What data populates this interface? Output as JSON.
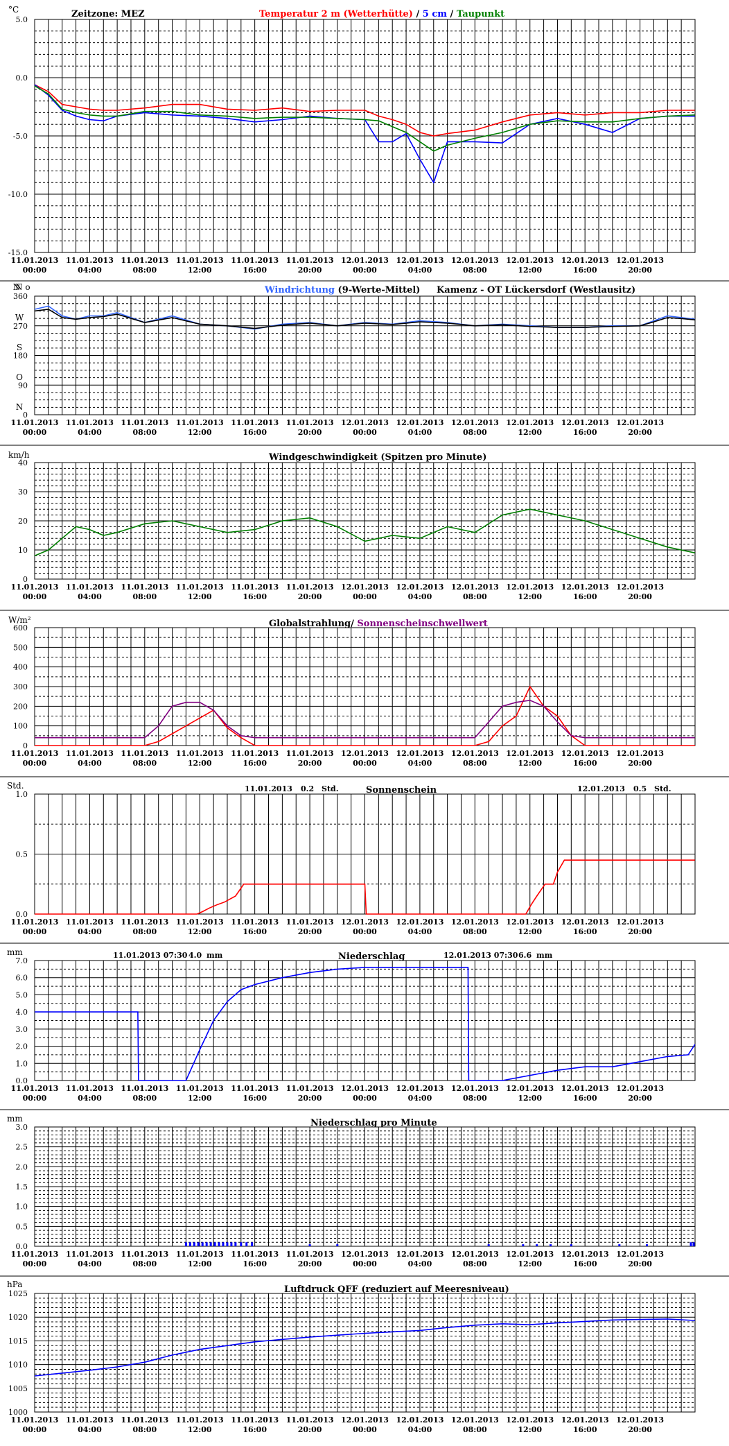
{
  "time_ticks": {
    "dates": [
      "11.01.2013",
      "11.01.2013",
      "11.01.2013",
      "11.01.2013",
      "11.01.2013",
      "11.01.2013",
      "12.01.2013",
      "12.01.2013",
      "12.01.2013",
      "12.01.2013",
      "12.01.2013",
      "12.01.2013"
    ],
    "times": [
      "00:00",
      "04:00",
      "08:00",
      "12:00",
      "16:00",
      "20:00",
      "00:00",
      "04:00",
      "08:00",
      "12:00",
      "16:00",
      "20:00"
    ]
  },
  "colors": {
    "red": "#ff0000",
    "blue": "#0000ff",
    "lightblue": "#3366ff",
    "green": "#008000",
    "purple": "#800080",
    "black": "#000000"
  },
  "panels": {
    "temperature": {
      "unit": "°C",
      "timezone": "Zeitzone: MEZ",
      "legend": {
        "t2m": "Temperatur 2 m (Wetterhütte)",
        "sep1": " / ",
        "t5cm": "5 cm",
        "sep2": " / ",
        "dew": "Taupunkt"
      }
    },
    "wind_dir": {
      "unit": "N  o",
      "title_blue": "Windrichtung",
      "title_black": " (9-Werte-Mittel)",
      "station": "Kamenz - OT Lückersdorf (Westlausitz)",
      "letters": [
        "N",
        "W",
        "S",
        "O",
        "N"
      ]
    },
    "wind_speed": {
      "unit": "km/h",
      "title": "Windgeschwindigkeit (Spitzen pro Minute)"
    },
    "radiation": {
      "unit": "W/m²",
      "title_black": "Globalstrahlung/ ",
      "title_purple": "Sonnenscheinschwellwert"
    },
    "sunshine": {
      "unit": "Std.",
      "title": "Sonnenschein",
      "day1_date": "11.01.2013",
      "day1_value": "0.2",
      "day1_unit": "Std.",
      "day2_date": "12.01.2013",
      "day2_value": "0.5",
      "day2_unit": "Std."
    },
    "precip": {
      "unit": "mm",
      "title": "Niederschlag",
      "day1_time": "11.01.2013 07:30",
      "day1_value": "4.0",
      "day1_unit": "mm",
      "day2_time": "12.01.2013 07:30",
      "day2_value": "6.6",
      "day2_unit": "mm"
    },
    "precip_min": {
      "unit": "mm",
      "title": "Niederschlag pro Minute"
    },
    "pressure": {
      "unit": "hPa",
      "title": "Luftdruck QFF (reduziert auf Meeresniveau)"
    }
  },
  "chart_data": [
    {
      "type": "line",
      "x": [
        0,
        1,
        2,
        3,
        4,
        5,
        6,
        8,
        10,
        12,
        14,
        16,
        18,
        20,
        22,
        24,
        25,
        26,
        27,
        28,
        29,
        30,
        32,
        34,
        36,
        38,
        40,
        42,
        44,
        46,
        47.99
      ],
      "ylim": [
        -15,
        5
      ],
      "yticks": [
        5,
        0,
        -5,
        -10,
        -15
      ],
      "series": [
        {
          "name": "Temperatur 2 m (Wetterhütte)",
          "color": "#ff0000",
          "values": [
            -0.6,
            -1.2,
            -2.3,
            -2.5,
            -2.7,
            -2.8,
            -2.8,
            -2.6,
            -2.3,
            -2.3,
            -2.7,
            -2.8,
            -2.6,
            -2.9,
            -2.8,
            -2.8,
            -3.3,
            -3.6,
            -4.0,
            -4.7,
            -5.0,
            -4.8,
            -4.5,
            -3.8,
            -3.2,
            -3.0,
            -3.2,
            -3.0,
            -3.0,
            -2.8,
            -2.8
          ]
        },
        {
          "name": "5 cm",
          "color": "#0000ff",
          "values": [
            -0.6,
            -1.5,
            -2.8,
            -3.3,
            -3.6,
            -3.7,
            -3.3,
            -3.0,
            -3.2,
            -3.3,
            -3.5,
            -3.8,
            -3.6,
            -3.3,
            -3.5,
            -3.6,
            -5.5,
            -5.5,
            -4.8,
            -7.0,
            -9.0,
            -5.5,
            -5.5,
            -5.6,
            -4.0,
            -3.5,
            -4.0,
            -4.7,
            -3.5,
            -3.3,
            -3.3
          ]
        },
        {
          "name": "Taupunkt",
          "color": "#008000",
          "values": [
            -0.7,
            -1.4,
            -2.7,
            -3.0,
            -3.2,
            -3.3,
            -3.3,
            -2.9,
            -2.9,
            -3.2,
            -3.3,
            -3.5,
            -3.4,
            -3.4,
            -3.5,
            -3.6,
            -3.7,
            -4.2,
            -4.7,
            -5.5,
            -6.3,
            -5.8,
            -5.2,
            -4.7,
            -4.0,
            -3.7,
            -3.8,
            -3.8,
            -3.5,
            -3.3,
            -3.2
          ]
        }
      ]
    },
    {
      "type": "line",
      "x": [
        0,
        1,
        2,
        3,
        4,
        5,
        6,
        8,
        10,
        12,
        14,
        16,
        18,
        20,
        22,
        24,
        26,
        28,
        30,
        32,
        34,
        36,
        38,
        40,
        42,
        44,
        45,
        46,
        47,
        47.99
      ],
      "ylim": [
        0,
        360
      ],
      "yticks": [
        360,
        270,
        180,
        90,
        0
      ],
      "series": [
        {
          "name": "Windrichtung",
          "color": "#3366ff",
          "values": [
            320,
            330,
            300,
            290,
            300,
            300,
            310,
            280,
            300,
            275,
            270,
            260,
            275,
            280,
            270,
            280,
            275,
            285,
            280,
            270,
            275,
            270,
            265,
            265,
            270,
            270,
            285,
            300,
            295,
            290
          ]
        },
        {
          "name": "9-Werte-Mittel",
          "color": "#000000",
          "values": [
            315,
            320,
            295,
            290,
            295,
            298,
            305,
            280,
            295,
            275,
            270,
            262,
            272,
            278,
            270,
            278,
            274,
            282,
            278,
            270,
            273,
            268,
            265,
            265,
            268,
            270,
            282,
            295,
            292,
            288
          ]
        }
      ]
    },
    {
      "type": "line",
      "x": [
        0,
        1,
        2,
        3,
        4,
        5,
        6,
        8,
        10,
        12,
        14,
        16,
        18,
        20,
        22,
        24,
        26,
        28,
        30,
        32,
        34,
        36,
        38,
        40,
        42,
        44,
        46,
        47.99
      ],
      "ylim": [
        0,
        40
      ],
      "yticks": [
        40,
        30,
        20,
        10,
        0
      ],
      "series": [
        {
          "name": "Windgeschwindigkeit (Spitzen pro Minute)",
          "color": "#008000",
          "values": [
            8,
            10,
            14,
            18,
            17,
            15,
            16,
            19,
            20,
            18,
            16,
            17,
            20,
            21,
            18,
            13,
            15,
            14,
            18,
            16,
            22,
            24,
            22,
            20,
            17,
            14,
            11,
            9
          ]
        }
      ]
    },
    {
      "type": "line",
      "x": [
        0,
        8,
        9,
        10,
        11,
        12,
        13,
        14,
        15,
        16,
        24,
        32,
        33,
        34,
        35,
        36,
        37,
        38,
        39,
        40,
        47.99
      ],
      "ylim": [
        0,
        600
      ],
      "yticks": [
        600,
        500,
        400,
        300,
        200,
        100,
        0
      ],
      "series": [
        {
          "name": "Globalstrahlung",
          "color": "#ff0000",
          "values": [
            0,
            0,
            20,
            60,
            100,
            140,
            180,
            90,
            40,
            0,
            0,
            0,
            20,
            100,
            150,
            300,
            200,
            150,
            50,
            0,
            0
          ]
        },
        {
          "name": "Sonnenscheinschwellwert",
          "color": "#800080",
          "values": [
            40,
            40,
            100,
            200,
            220,
            220,
            180,
            100,
            50,
            40,
            40,
            40,
            120,
            200,
            220,
            230,
            200,
            120,
            50,
            40,
            40
          ]
        }
      ]
    },
    {
      "type": "line",
      "x": [
        0,
        11.8,
        12.2,
        12.7,
        13.3,
        13.8,
        14.6,
        15.2,
        20,
        24,
        24.1,
        35.7,
        36.1,
        36.5,
        37.1,
        37.7,
        38,
        38.5,
        47.99
      ],
      "ylim": [
        0,
        1
      ],
      "yticks": [
        1.0,
        0.5,
        0.0
      ],
      "series": [
        {
          "name": "Sonnenschein",
          "color": "#ff0000",
          "values": [
            0,
            0,
            0.02,
            0.05,
            0.08,
            0.1,
            0.15,
            0.25,
            0.25,
            0.25,
            0,
            0,
            0.08,
            0.15,
            0.25,
            0.25,
            0.35,
            0.45,
            0.45
          ]
        }
      ]
    },
    {
      "type": "line",
      "x": [
        0,
        7.5,
        7.55,
        11,
        12,
        13,
        14,
        15,
        16,
        18,
        20,
        22,
        24,
        26,
        30,
        31.5,
        31.55,
        34,
        36,
        38,
        40,
        42,
        44,
        46,
        47.5,
        47.99
      ],
      "ylim": [
        0,
        7
      ],
      "yticks": [
        7.0,
        6.0,
        5.0,
        4.0,
        3.0,
        2.0,
        1.0,
        0.0
      ],
      "series": [
        {
          "name": "Niederschlag",
          "color": "#0000ff",
          "values": [
            4.0,
            4.0,
            0,
            0,
            1.8,
            3.5,
            4.6,
            5.3,
            5.6,
            6.0,
            6.3,
            6.5,
            6.6,
            6.6,
            6.6,
            6.6,
            0,
            0,
            0.3,
            0.6,
            0.8,
            0.8,
            1.1,
            1.4,
            1.5,
            2.1
          ]
        }
      ]
    },
    {
      "type": "bar",
      "ylim": [
        0,
        3
      ],
      "yticks": [
        3.0,
        2.5,
        2.0,
        1.5,
        1.0,
        0.5,
        0.0
      ],
      "series": [
        {
          "name": "Niederschlag pro Minute",
          "color": "#0000ff",
          "x": [
            11.0,
            11.3,
            11.6,
            11.9,
            12.2,
            12.5,
            12.8,
            13.1,
            13.4,
            13.7,
            14.0,
            14.3,
            14.6,
            15.0,
            15.4,
            15.8,
            20.0,
            22.0,
            33.0,
            35.5,
            36.5,
            37.5,
            39.0,
            42.5,
            44.5,
            47.7,
            47.9
          ],
          "values": [
            0.1,
            0.1,
            0.1,
            0.1,
            0.1,
            0.1,
            0.1,
            0.1,
            0.1,
            0.1,
            0.1,
            0.1,
            0.1,
            0.1,
            0.1,
            0.1,
            0.05,
            0.05,
            0.05,
            0.05,
            0.05,
            0.05,
            0.05,
            0.05,
            0.05,
            0.1,
            0.1
          ]
        }
      ]
    },
    {
      "type": "line",
      "x": [
        0,
        2,
        4,
        6,
        8,
        10,
        12,
        14,
        16,
        18,
        20,
        22,
        24,
        26,
        28,
        30,
        32,
        34,
        36,
        38,
        40,
        42,
        44,
        46,
        47.99
      ],
      "ylim": [
        1000,
        1025
      ],
      "yticks": [
        1025,
        1020,
        1015,
        1010,
        1005,
        1000
      ],
      "series": [
        {
          "name": "Luftdruck QFF (reduziert auf Meeresniveau)",
          "color": "#0000ff",
          "values": [
            1007.6,
            1008.2,
            1008.8,
            1009.5,
            1010.5,
            1012.0,
            1013.2,
            1014.0,
            1014.8,
            1015.3,
            1015.8,
            1016.2,
            1016.6,
            1016.9,
            1017.2,
            1017.8,
            1018.3,
            1018.6,
            1018.4,
            1018.8,
            1019.1,
            1019.4,
            1019.5,
            1019.6,
            1019.3
          ]
        }
      ]
    }
  ]
}
